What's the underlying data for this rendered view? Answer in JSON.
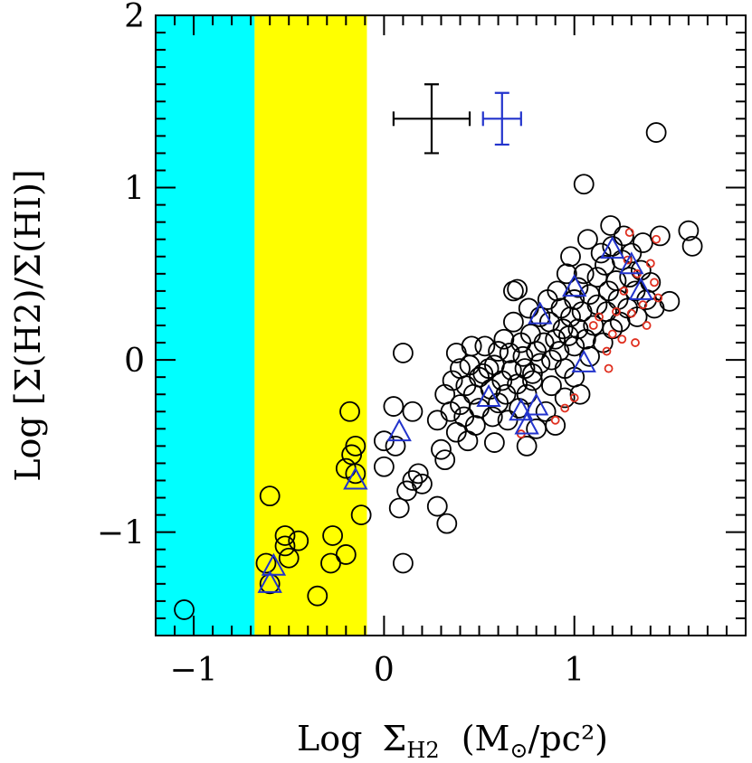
{
  "chart_data": {
    "type": "scatter",
    "xlabel": {
      "prefix": "Log",
      "sigma": "Σ",
      "subscript": "H2",
      "unit_open": "(M",
      "sun_symbol": "⊙",
      "unit_close": "/pc²)"
    },
    "ylabel": "Log [Σ(H2)/Σ(HI)]",
    "xlim": [
      -1.2,
      1.9
    ],
    "ylim": [
      -1.6,
      2.0
    ],
    "x_ticks": [
      {
        "value": -1,
        "label": "−1"
      },
      {
        "value": 0,
        "label": "0"
      },
      {
        "value": 1,
        "label": "1"
      }
    ],
    "y_ticks": [
      {
        "value": -1,
        "label": "−1"
      },
      {
        "value": 0,
        "label": "0"
      },
      {
        "value": 1,
        "label": "1"
      },
      {
        "value": 2,
        "label": "2"
      }
    ],
    "shaded_regions": [
      {
        "name": "cyan-region",
        "x_from": -1.2,
        "x_to": -0.68,
        "color": "#00FFFF"
      },
      {
        "name": "yellow-region",
        "x_from": -0.68,
        "x_to": -0.09,
        "color": "#FFFF00"
      }
    ],
    "error_bars": [
      {
        "name": "black-errorbar",
        "x": 0.25,
        "y": 1.4,
        "xerr": 0.2,
        "yerr": 0.2,
        "color": "#000000"
      },
      {
        "name": "blue-errorbar",
        "x": 0.62,
        "y": 1.4,
        "xerr": 0.1,
        "yerr": 0.15,
        "color": "#2233CC"
      }
    ],
    "series": [
      {
        "name": "black-circles",
        "marker": "open-circle",
        "color": "#000000",
        "points": [
          [
            -1.05,
            -1.45
          ],
          [
            -0.6,
            -0.79
          ],
          [
            -0.62,
            -1.18
          ],
          [
            -0.6,
            -1.3
          ],
          [
            -0.52,
            -1.02
          ],
          [
            -0.52,
            -1.08
          ],
          [
            -0.5,
            -1.15
          ],
          [
            -0.45,
            -1.05
          ],
          [
            -0.35,
            -1.37
          ],
          [
            -0.28,
            -1.18
          ],
          [
            -0.27,
            -1.02
          ],
          [
            -0.2,
            -1.13
          ],
          [
            -0.2,
            -0.63
          ],
          [
            -0.18,
            -0.3
          ],
          [
            -0.17,
            -0.55
          ],
          [
            -0.15,
            -0.5
          ],
          [
            -0.15,
            -0.66
          ],
          [
            -0.12,
            -0.9
          ],
          [
            0.0,
            -0.47
          ],
          [
            0.0,
            -0.62
          ],
          [
            0.05,
            -0.27
          ],
          [
            0.06,
            -0.5
          ],
          [
            0.08,
            -0.86
          ],
          [
            0.1,
            -1.18
          ],
          [
            0.1,
            0.04
          ],
          [
            0.12,
            -0.76
          ],
          [
            0.15,
            -0.7
          ],
          [
            0.15,
            -0.3
          ],
          [
            0.18,
            -0.66
          ],
          [
            0.2,
            -0.72
          ],
          [
            0.28,
            -0.35
          ],
          [
            0.28,
            -0.85
          ],
          [
            0.3,
            -0.52
          ],
          [
            0.32,
            -0.2
          ],
          [
            0.32,
            -0.58
          ],
          [
            0.33,
            -0.95
          ],
          [
            0.35,
            -0.3
          ],
          [
            0.36,
            -0.12
          ],
          [
            0.38,
            -0.42
          ],
          [
            0.38,
            0.04
          ],
          [
            0.4,
            -0.26
          ],
          [
            0.4,
            -0.05
          ],
          [
            0.42,
            -0.33
          ],
          [
            0.43,
            -0.15
          ],
          [
            0.44,
            -0.47
          ],
          [
            0.45,
            -0.03
          ],
          [
            0.46,
            0.08
          ],
          [
            0.47,
            -0.2
          ],
          [
            0.48,
            -0.38
          ],
          [
            0.5,
            -0.1
          ],
          [
            0.5,
            -0.28
          ],
          [
            0.52,
            -0.08
          ],
          [
            0.53,
            0.08
          ],
          [
            0.55,
            -0.05
          ],
          [
            0.56,
            -0.17
          ],
          [
            0.57,
            -0.33
          ],
          [
            0.58,
            -0.03
          ],
          [
            0.58,
            -0.48
          ],
          [
            0.6,
            -0.25
          ],
          [
            0.6,
            0.05
          ],
          [
            0.62,
            -0.12
          ],
          [
            0.63,
            0.12
          ],
          [
            0.64,
            -0.2
          ],
          [
            0.65,
            -0.35
          ],
          [
            0.66,
            0.04
          ],
          [
            0.67,
            -0.06
          ],
          [
            0.68,
            0.22
          ],
          [
            0.68,
            0.4
          ],
          [
            0.7,
            0.41
          ],
          [
            0.7,
            -0.14
          ],
          [
            0.71,
            -0.28
          ],
          [
            0.72,
            0.1
          ],
          [
            0.73,
            0.02
          ],
          [
            0.74,
            -0.05
          ],
          [
            0.75,
            -0.2
          ],
          [
            0.75,
            -0.5
          ],
          [
            0.76,
            0.3
          ],
          [
            0.77,
            0.15
          ],
          [
            0.78,
            -0.08
          ],
          [
            0.78,
            -0.12
          ],
          [
            0.8,
            0.05
          ],
          [
            0.8,
            -0.4
          ],
          [
            0.82,
            0.25
          ],
          [
            0.82,
            -0.02
          ],
          [
            0.84,
            0.1
          ],
          [
            0.85,
            -0.3
          ],
          [
            0.86,
            0.35
          ],
          [
            0.87,
            0.22
          ],
          [
            0.88,
            0.0
          ],
          [
            0.88,
            -0.15
          ],
          [
            0.9,
            0.12
          ],
          [
            0.9,
            -0.38
          ],
          [
            0.91,
            0.4
          ],
          [
            0.92,
            0.05
          ],
          [
            0.93,
            0.3
          ],
          [
            0.94,
            0.18
          ],
          [
            0.95,
            -0.05
          ],
          [
            0.95,
            -0.22
          ],
          [
            0.96,
            0.5
          ],
          [
            0.97,
            0.14
          ],
          [
            0.98,
            0.25
          ],
          [
            0.98,
            0.6
          ],
          [
            1.0,
            0.08
          ],
          [
            1.0,
            -0.1
          ],
          [
            1.0,
            0.35
          ],
          [
            1.02,
            0.42
          ],
          [
            1.02,
            0.18
          ],
          [
            1.03,
            -0.2
          ],
          [
            1.04,
            0.28
          ],
          [
            1.05,
            0.5
          ],
          [
            1.05,
            1.02
          ],
          [
            1.06,
            0.12
          ],
          [
            1.07,
            0.7
          ],
          [
            1.08,
            0.38
          ],
          [
            1.08,
            0.02
          ],
          [
            1.1,
            0.2
          ],
          [
            1.12,
            0.48
          ],
          [
            1.12,
            0.32
          ],
          [
            1.14,
            0.62
          ],
          [
            1.15,
            0.1
          ],
          [
            1.16,
            0.55
          ],
          [
            1.17,
            0.28
          ],
          [
            1.18,
            0.4
          ],
          [
            1.19,
            0.78
          ],
          [
            1.2,
            0.18
          ],
          [
            1.2,
            0.66
          ],
          [
            1.22,
            0.46
          ],
          [
            1.23,
            0.35
          ],
          [
            1.24,
            0.22
          ],
          [
            1.25,
            0.58
          ],
          [
            1.26,
            0.72
          ],
          [
            1.28,
            0.3
          ],
          [
            1.29,
            0.48
          ],
          [
            1.3,
            0.62
          ],
          [
            1.32,
            0.4
          ],
          [
            1.33,
            0.25
          ],
          [
            1.35,
            0.52
          ],
          [
            1.36,
            0.68
          ],
          [
            1.38,
            0.35
          ],
          [
            1.4,
            0.45
          ],
          [
            1.42,
            0.3
          ],
          [
            1.43,
            1.32
          ],
          [
            1.45,
            0.72
          ],
          [
            1.5,
            0.34
          ],
          [
            1.6,
            0.75
          ],
          [
            1.62,
            0.66
          ]
        ]
      },
      {
        "name": "red-small-circles",
        "marker": "small-open-circle",
        "color": "#E03020",
        "points": [
          [
            0.72,
            -0.43
          ],
          [
            0.9,
            -0.35
          ],
          [
            0.95,
            -0.28
          ],
          [
            1.0,
            -0.22
          ],
          [
            1.1,
            0.2
          ],
          [
            1.13,
            0.25
          ],
          [
            1.17,
            0.05
          ],
          [
            1.18,
            -0.05
          ],
          [
            1.2,
            0.15
          ],
          [
            1.22,
            0.28
          ],
          [
            1.25,
            0.12
          ],
          [
            1.26,
            0.4
          ],
          [
            1.28,
            0.58
          ],
          [
            1.3,
            0.27
          ],
          [
            1.32,
            0.1
          ],
          [
            1.33,
            0.5
          ],
          [
            1.36,
            0.32
          ],
          [
            1.38,
            0.2
          ],
          [
            1.4,
            0.56
          ],
          [
            1.42,
            0.45
          ],
          [
            1.43,
            0.7
          ],
          [
            1.44,
            0.36
          ],
          [
            1.29,
            0.74
          ]
        ]
      },
      {
        "name": "blue-triangles",
        "marker": "open-triangle",
        "color": "#2233CC",
        "points": [
          [
            -0.6,
            -1.3
          ],
          [
            -0.58,
            -1.2
          ],
          [
            -0.15,
            -0.7
          ],
          [
            0.08,
            -0.42
          ],
          [
            0.55,
            -0.22
          ],
          [
            0.72,
            -0.3
          ],
          [
            0.75,
            -0.38
          ],
          [
            0.8,
            -0.27
          ],
          [
            0.82,
            0.26
          ],
          [
            1.0,
            0.42
          ],
          [
            1.05,
            -0.02
          ],
          [
            1.2,
            0.64
          ],
          [
            1.3,
            0.55
          ],
          [
            1.35,
            0.4
          ]
        ]
      }
    ]
  }
}
